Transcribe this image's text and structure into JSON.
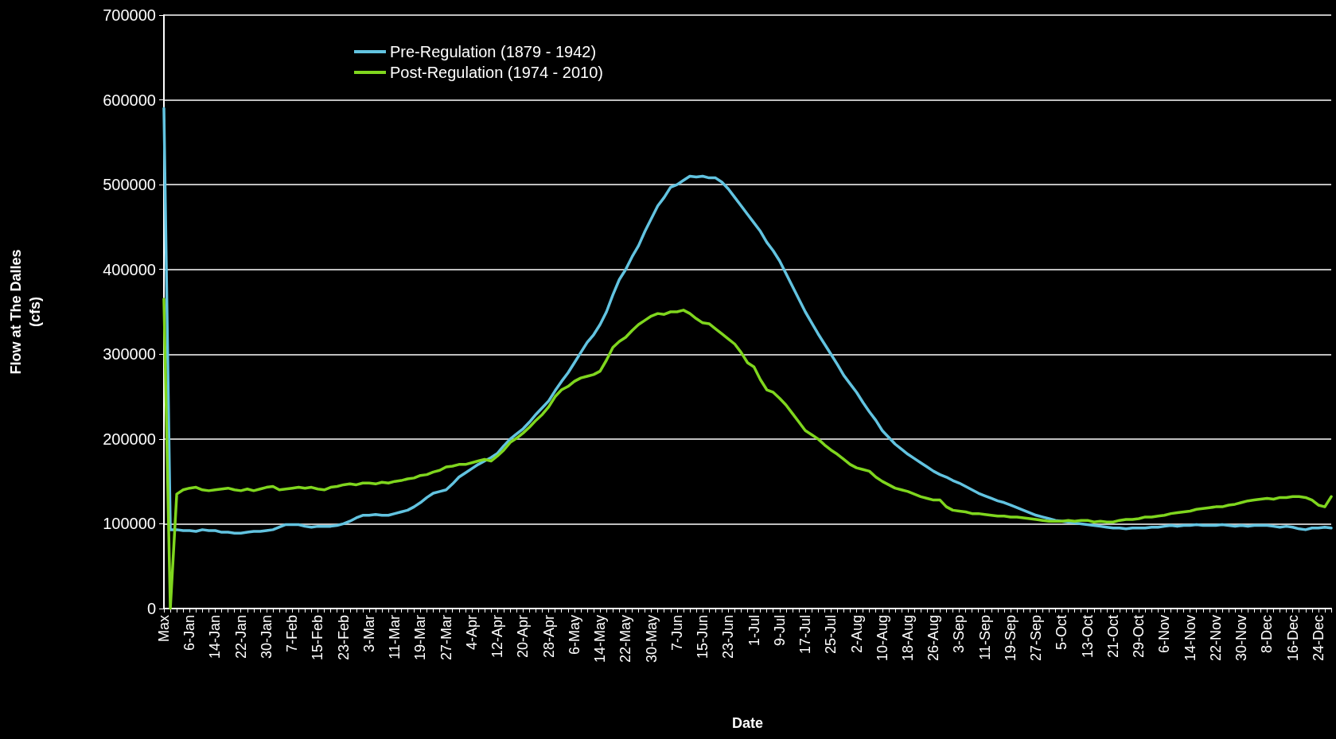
{
  "chart_data": {
    "type": "line",
    "xlabel": "Date",
    "ylabel": "Flow at The Dalles\n(cfs)",
    "categories": [
      "Max",
      null,
      null,
      null,
      "6-Jan",
      null,
      null,
      null,
      "14-Jan",
      null,
      null,
      null,
      "22-Jan",
      null,
      null,
      null,
      "30-Jan",
      null,
      null,
      null,
      "7-Feb",
      null,
      null,
      null,
      "15-Feb",
      null,
      null,
      null,
      "23-Feb",
      null,
      null,
      null,
      "3-Mar",
      null,
      null,
      null,
      "11-Mar",
      null,
      null,
      null,
      "19-Mar",
      null,
      null,
      null,
      "27-Mar",
      null,
      null,
      null,
      "4-Apr",
      null,
      null,
      null,
      "12-Apr",
      null,
      null,
      null,
      "20-Apr",
      null,
      null,
      null,
      "28-Apr",
      null,
      null,
      null,
      "6-May",
      null,
      null,
      null,
      "14-May",
      null,
      null,
      null,
      "22-May",
      null,
      null,
      null,
      "30-May",
      null,
      null,
      null,
      "7-Jun",
      null,
      null,
      null,
      "15-Jun",
      null,
      null,
      null,
      "23-Jun",
      null,
      null,
      null,
      "1-Jul",
      null,
      null,
      null,
      "9-Jul",
      null,
      null,
      null,
      "17-Jul",
      null,
      null,
      null,
      "25-Jul",
      null,
      null,
      null,
      "2-Aug",
      null,
      null,
      null,
      "10-Aug",
      null,
      null,
      null,
      "18-Aug",
      null,
      null,
      null,
      "26-Aug",
      null,
      null,
      null,
      "3-Sep",
      null,
      null,
      null,
      "11-Sep",
      null,
      null,
      null,
      "19-Sep",
      null,
      null,
      null,
      "27-Sep",
      null,
      null,
      null,
      "5-Oct",
      null,
      null,
      null,
      "13-Oct",
      null,
      null,
      null,
      "21-Oct",
      null,
      null,
      null,
      "29-Oct",
      null,
      null,
      null,
      "6-Nov",
      null,
      null,
      null,
      "14-Nov",
      null,
      null,
      null,
      "22-Nov",
      null,
      null,
      null,
      "30-Nov",
      null,
      null,
      null,
      "8-Dec",
      null,
      null,
      null,
      "16-Dec",
      null,
      null,
      null,
      "24-Dec",
      null,
      null
    ],
    "series": [
      {
        "name": "Pre-Regulation (1879 - 1942)",
        "color": "#62c3e0",
        "values": [
          590000,
          93000,
          93000,
          92000,
          92000,
          91000,
          93000,
          92000,
          92000,
          90000,
          90000,
          89000,
          89000,
          90000,
          91000,
          91000,
          92000,
          93000,
          96000,
          99000,
          99000,
          99000,
          97000,
          96000,
          97000,
          97000,
          97000,
          98000,
          100000,
          103000,
          107000,
          110000,
          110000,
          111000,
          110000,
          110000,
          112000,
          114000,
          116000,
          120000,
          125000,
          131000,
          136000,
          138000,
          140000,
          147000,
          155000,
          160000,
          165000,
          170000,
          174000,
          178000,
          183000,
          192000,
          200000,
          206000,
          212000,
          220000,
          229000,
          237000,
          245000,
          257000,
          268000,
          278000,
          290000,
          302000,
          314000,
          323000,
          335000,
          350000,
          370000,
          388000,
          400000,
          415000,
          428000,
          445000,
          460000,
          475000,
          485000,
          497000,
          500000,
          505000,
          510000,
          509000,
          510000,
          508000,
          508000,
          503000,
          495000,
          485000,
          475000,
          465000,
          455000,
          445000,
          432000,
          422000,
          410000,
          395000,
          380000,
          365000,
          350000,
          337000,
          324000,
          312000,
          300000,
          288000,
          275000,
          265000,
          255000,
          243000,
          232000,
          222000,
          210000,
          202000,
          194000,
          188000,
          182000,
          177000,
          172000,
          167000,
          162000,
          158000,
          155000,
          151000,
          148000,
          144000,
          140000,
          136000,
          133000,
          130000,
          127000,
          125000,
          122000,
          119000,
          116000,
          113000,
          110000,
          108000,
          106000,
          104000,
          103000,
          102000,
          101000,
          100000,
          99000,
          98000,
          97000,
          96000,
          95000,
          95000,
          94000,
          95000,
          95000,
          95000,
          96000,
          96000,
          97000,
          98000,
          97000,
          98000,
          98000,
          99000,
          98000,
          98000,
          98000,
          99000,
          98000,
          97000,
          98000,
          97000,
          98000,
          98000,
          98000,
          97000,
          96000,
          97000,
          96000,
          94000,
          93000,
          95000,
          95000,
          96000,
          95000
        ]
      },
      {
        "name": "Post-Regulation (1974 - 2010)",
        "color": "#7fd61e",
        "values": [
          365000,
          0,
          135000,
          140000,
          142000,
          143000,
          140000,
          139000,
          140000,
          141000,
          142000,
          140000,
          139000,
          141000,
          139000,
          141000,
          143000,
          144000,
          140000,
          141000,
          142000,
          143000,
          142000,
          143000,
          141000,
          140000,
          143000,
          144000,
          146000,
          147000,
          146000,
          148000,
          148000,
          147000,
          149000,
          148000,
          150000,
          151000,
          153000,
          154000,
          157000,
          158000,
          161000,
          163000,
          167000,
          168000,
          170000,
          170000,
          172000,
          174000,
          176000,
          174000,
          180000,
          187000,
          196000,
          201000,
          207000,
          214000,
          222000,
          229000,
          238000,
          250000,
          258000,
          262000,
          268000,
          272000,
          274000,
          276000,
          280000,
          293000,
          308000,
          315000,
          320000,
          328000,
          335000,
          340000,
          345000,
          348000,
          347000,
          350000,
          350000,
          352000,
          348000,
          342000,
          337000,
          336000,
          330000,
          324000,
          318000,
          312000,
          302000,
          290000,
          285000,
          270000,
          258000,
          255000,
          248000,
          240000,
          230000,
          220000,
          210000,
          205000,
          200000,
          193000,
          187000,
          182000,
          176000,
          170000,
          166000,
          164000,
          162000,
          155000,
          150000,
          146000,
          142000,
          140000,
          138000,
          135000,
          132000,
          130000,
          128000,
          128000,
          120000,
          116000,
          115000,
          114000,
          112000,
          112000,
          111000,
          110000,
          109000,
          109000,
          108000,
          108000,
          107000,
          106000,
          105000,
          104000,
          103000,
          103000,
          103000,
          104000,
          103000,
          104000,
          104000,
          102000,
          103000,
          102000,
          102000,
          104000,
          105000,
          105000,
          106000,
          108000,
          108000,
          109000,
          110000,
          112000,
          113000,
          114000,
          115000,
          117000,
          118000,
          119000,
          120000,
          120000,
          122000,
          123000,
          125000,
          127000,
          128000,
          129000,
          130000,
          129000,
          131000,
          131000,
          132000,
          132000,
          131000,
          128000,
          122000,
          120000,
          132000
        ]
      }
    ],
    "ylim": [
      0,
      700000
    ],
    "yticks": [
      0,
      100000,
      200000,
      300000,
      400000,
      500000,
      600000,
      700000
    ],
    "grid": "y",
    "legend": "top left",
    "marker": "none"
  }
}
